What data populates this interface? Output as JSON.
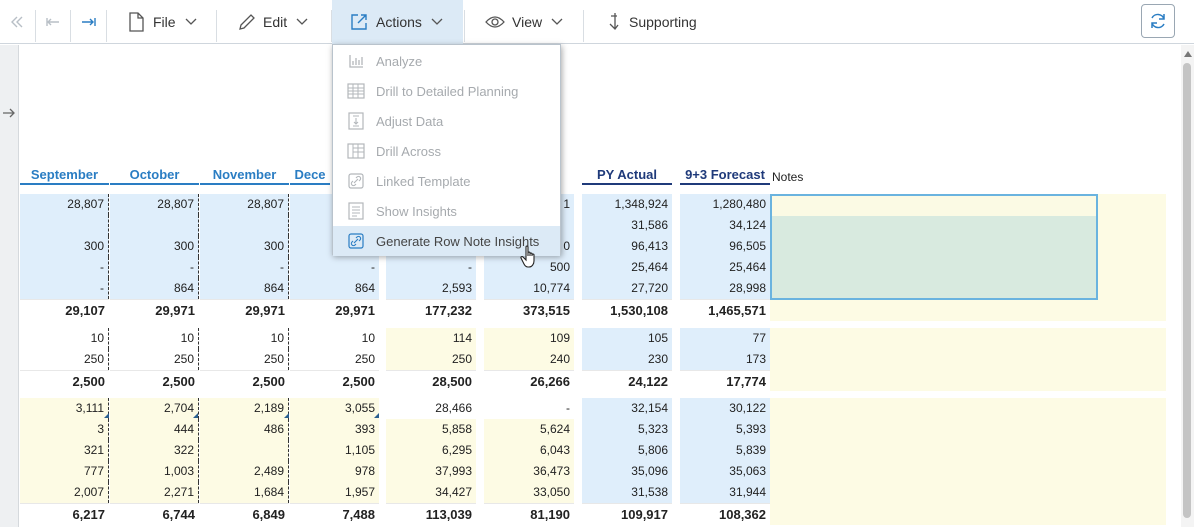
{
  "toolbar": {
    "file_label": "File",
    "edit_label": "Edit",
    "actions_label": "Actions",
    "view_label": "View",
    "supporting_label": "Supporting"
  },
  "actions_menu": {
    "items": [
      {
        "label": "Analyze",
        "icon": "bar-chart-icon",
        "enabled": false
      },
      {
        "label": "Drill to Detailed Planning",
        "icon": "grid-table-icon",
        "enabled": false
      },
      {
        "label": "Adjust Data",
        "icon": "adjust-data-icon",
        "enabled": false
      },
      {
        "label": "Drill Across",
        "icon": "grid-columns-icon",
        "enabled": false
      },
      {
        "label": "Linked Template",
        "icon": "link-icon",
        "enabled": false
      },
      {
        "label": "Show Insights",
        "icon": "document-lines-icon",
        "enabled": false
      },
      {
        "label": "Generate Row Note Insights",
        "icon": "link-icon",
        "enabled": true
      }
    ]
  },
  "grid": {
    "headers": [
      "September",
      "October",
      "November",
      "Dece",
      "",
      "",
      "PY Actual",
      "9+3 Forecast"
    ],
    "notes_label": "Notes",
    "rows": [
      [
        "28,807",
        "28,807",
        "28,807",
        "",
        "",
        "1",
        "1,348,924",
        "1,280,480"
      ],
      [
        "",
        "",
        "",
        "",
        "",
        "",
        "31,586",
        "34,124"
      ],
      [
        "300",
        "300",
        "300",
        "",
        "",
        "0",
        "96,413",
        "96,505"
      ],
      [
        "-",
        "-",
        "-",
        "-",
        "-",
        "500",
        "25,464",
        "25,464"
      ],
      [
        "-",
        "864",
        "864",
        "864",
        "2,593",
        "10,774",
        "27,720",
        "28,998"
      ],
      [
        "29,107",
        "29,971",
        "29,971",
        "29,971",
        "177,232",
        "373,515",
        "1,530,108",
        "1,465,571"
      ],
      [
        "10",
        "10",
        "10",
        "10",
        "114",
        "109",
        "105",
        "77"
      ],
      [
        "250",
        "250",
        "250",
        "250",
        "250",
        "240",
        "230",
        "173"
      ],
      [
        "2,500",
        "2,500",
        "2,500",
        "2,500",
        "28,500",
        "26,266",
        "24,122",
        "17,774"
      ],
      [
        "3,111",
        "2,704",
        "2,189",
        "3,055",
        "28,466",
        "-",
        "32,154",
        "30,122"
      ],
      [
        "3",
        "444",
        "486",
        "393",
        "5,858",
        "5,624",
        "5,323",
        "5,393"
      ],
      [
        "321",
        "322",
        "",
        "1,105",
        "6,295",
        "6,043",
        "5,806",
        "5,839"
      ],
      [
        "777",
        "1,003",
        "2,489",
        "978",
        "37,993",
        "36,473",
        "35,096",
        "35,063"
      ],
      [
        "2,007",
        "2,271",
        "1,684",
        "1,957",
        "34,427",
        "33,050",
        "31,538",
        "31,944"
      ],
      [
        "6,217",
        "6,744",
        "6,849",
        "7,488",
        "113,039",
        "81,190",
        "109,917",
        "108,362"
      ]
    ]
  },
  "colors": {
    "header_blue": "#2a7dc3",
    "header_dark": "#1f3a7a",
    "cell_blue": "#dfeefb",
    "cell_yellow": "#fdfbe4",
    "menu_highlight": "#dceaf6"
  }
}
